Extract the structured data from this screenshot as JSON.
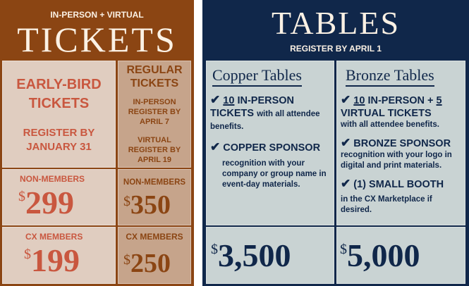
{
  "tickets": {
    "kicker": "IN-PERSON + VIRTUAL",
    "title": "TICKETS",
    "early_bird": {
      "heading": "EARLY-BIRD TICKETS",
      "deadline": "REGISTER BY JANUARY 31",
      "non_members_label": "NON-MEMBERS",
      "non_members_price": "299",
      "members_label": "CX MEMBERS",
      "members_price": "199"
    },
    "regular": {
      "heading": "REGULAR TICKETS",
      "in_person_deadline": "IN-PERSON REGISTER BY APRIL 7",
      "virtual_deadline": "VIRTUAL REGISTER BY APRIL 19",
      "non_members_label": "NON-MEMBERS",
      "non_members_price": "350",
      "members_label": "CX MEMBERS",
      "members_price": "250"
    },
    "currency": "$"
  },
  "tables": {
    "title": "TABLES",
    "subtitle": "REGISTER BY APRIL 1",
    "check": "✔",
    "currency": "$",
    "copper": {
      "name": "Copper Tables",
      "item1_count": "10",
      "item1_text": "IN-PERSON TICKETS",
      "item1_detail": "with all attendee benefits.",
      "item2_title": "COPPER SPONSOR",
      "item2_detail": "recognition with your company or group name in event-day materials.",
      "price": "3,500"
    },
    "bronze": {
      "name": "Bronze Tables",
      "item1_count": "10",
      "item1_mid": "IN-PERSON +",
      "item1_count2": "5",
      "item1_text": "VIRTUAL TICKETS",
      "item1_detail": "with all attendee benefits.",
      "item2_title": "BRONZE SPONSOR",
      "item2_detail": "recognition with your logo in digital and print materials.",
      "item3_title": "(1) SMALL BOOTH",
      "item3_detail": "in the CX Marketplace if desired.",
      "price": "5,000"
    }
  },
  "colors": {
    "brown": "#8b4513",
    "early_bird_bg": "#e0cdc0",
    "early_bird_text": "#c9573f",
    "regular_bg": "#c6a48b",
    "navy": "#10274a",
    "table_bg": "#c9d3d3"
  }
}
